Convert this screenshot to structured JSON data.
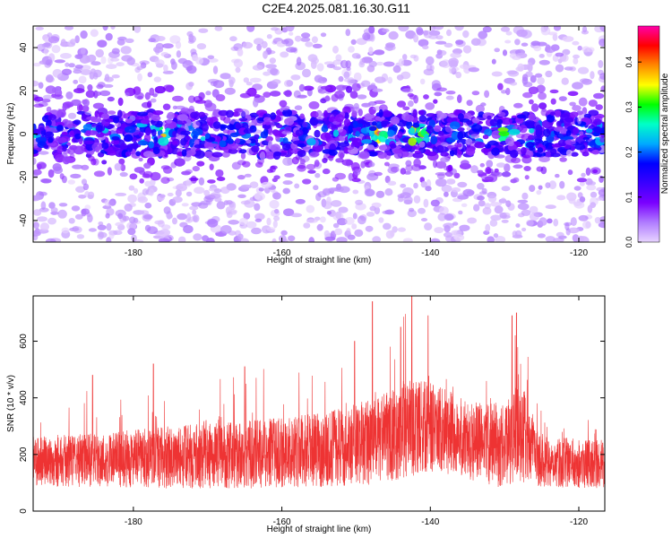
{
  "title": "C2E4.2025.081.16.30.G11",
  "chart_data": [
    {
      "type": "heatmap",
      "xlabel": "Height of straight line (km)",
      "ylabel": "Frequency (Hz)",
      "xlim": [
        -193.5,
        -116.5
      ],
      "ylim": [
        -50,
        50
      ],
      "xticks": [
        -180,
        -160,
        -140,
        -120
      ],
      "yticks": [
        -40,
        -20,
        0,
        20,
        40
      ],
      "colorbar": {
        "label": "Normalized spectral amplitude",
        "range": [
          0,
          0.48
        ],
        "ticks": [
          0.0,
          0.1,
          0.2,
          0.3,
          0.4
        ],
        "colormap": [
          "#e8d4ff",
          "#b07cff",
          "#7a00ff",
          "#3a00ff",
          "#0000ff",
          "#00aaff",
          "#00ffc8",
          "#00ff00",
          "#ffff00",
          "#ff8800",
          "#ff0000",
          "#ff00aa"
        ]
      },
      "band": {
        "center_hz": 0,
        "half_width_hz": 8,
        "note_peaks_km": [
          -129,
          -141,
          -147,
          -176
        ]
      }
    },
    {
      "type": "line",
      "xlabel": "Height of straight line (km)",
      "ylabel": "SNR (10 * v/v)",
      "xlim": [
        -193.5,
        -116.5
      ],
      "ylim": [
        0,
        760
      ],
      "xticks": [
        -180,
        -160,
        -140,
        -120
      ],
      "yticks": [
        0,
        200,
        400,
        600
      ],
      "color": "#ee3333",
      "envelope": [
        {
          "x": -193.5,
          "mean": 175,
          "spread": 90
        },
        {
          "x": -185,
          "mean": 180,
          "spread": 95
        },
        {
          "x": -175,
          "mean": 190,
          "spread": 110
        },
        {
          "x": -165,
          "mean": 200,
          "spread": 120
        },
        {
          "x": -155,
          "mean": 215,
          "spread": 130
        },
        {
          "x": -148,
          "mean": 240,
          "spread": 150
        },
        {
          "x": -143,
          "mean": 290,
          "spread": 170
        },
        {
          "x": -140,
          "mean": 300,
          "spread": 160
        },
        {
          "x": -135,
          "mean": 250,
          "spread": 140
        },
        {
          "x": -130,
          "mean": 230,
          "spread": 150
        },
        {
          "x": -128,
          "mean": 280,
          "spread": 180
        },
        {
          "x": -125,
          "mean": 175,
          "spread": 90
        },
        {
          "x": -116.5,
          "mean": 165,
          "spread": 85
        }
      ],
      "peaks": [
        {
          "x": -142.5,
          "y": 760
        },
        {
          "x": -147.8,
          "y": 740
        },
        {
          "x": -140.3,
          "y": 690
        },
        {
          "x": -128.4,
          "y": 700
        },
        {
          "x": -129.0,
          "y": 690
        },
        {
          "x": -144.0,
          "y": 650
        },
        {
          "x": -150.2,
          "y": 600
        },
        {
          "x": -177.3,
          "y": 520
        },
        {
          "x": -165.0,
          "y": 510
        },
        {
          "x": -185.5,
          "y": 480
        }
      ]
    }
  ]
}
